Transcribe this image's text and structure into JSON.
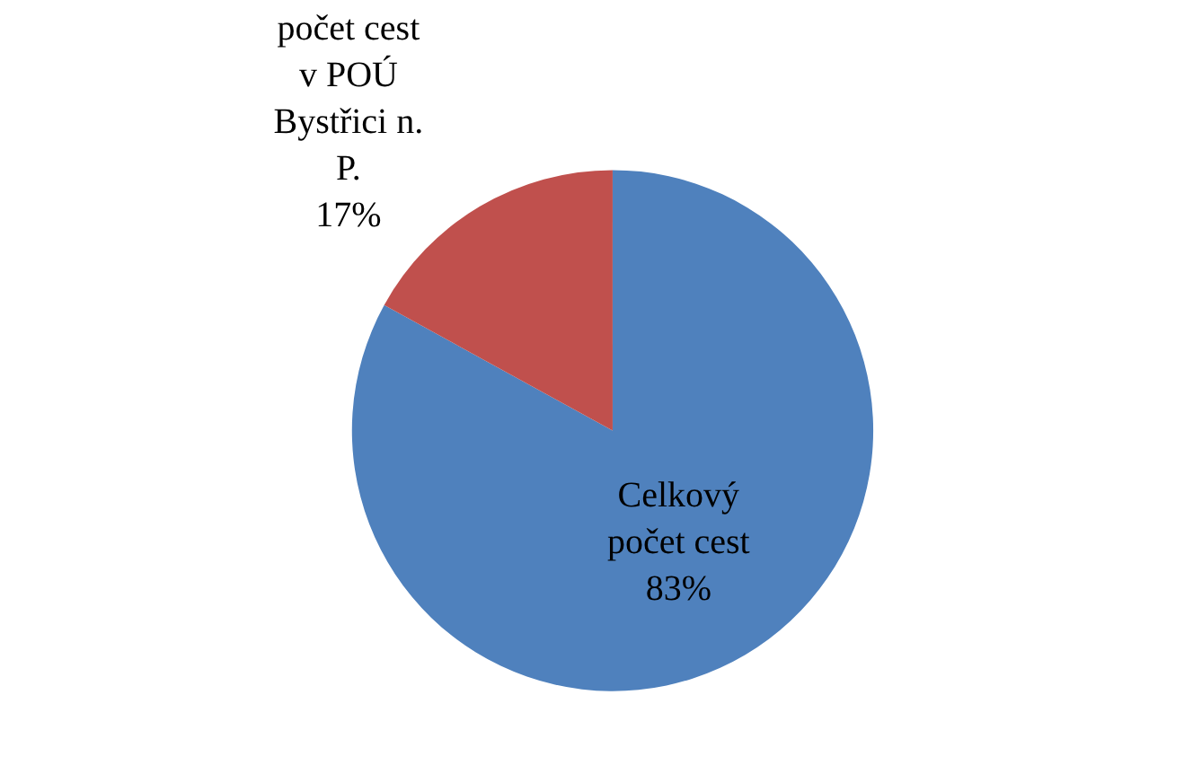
{
  "chart_data": {
    "type": "pie",
    "categories": [
      "Celkový počet cest",
      "počet cest v POÚ Bystřici n. P."
    ],
    "values": [
      83,
      17
    ],
    "colors": [
      "#4f81bd",
      "#c0504d"
    ],
    "value_labels": [
      "83%",
      "17%"
    ],
    "legend": false
  }
}
